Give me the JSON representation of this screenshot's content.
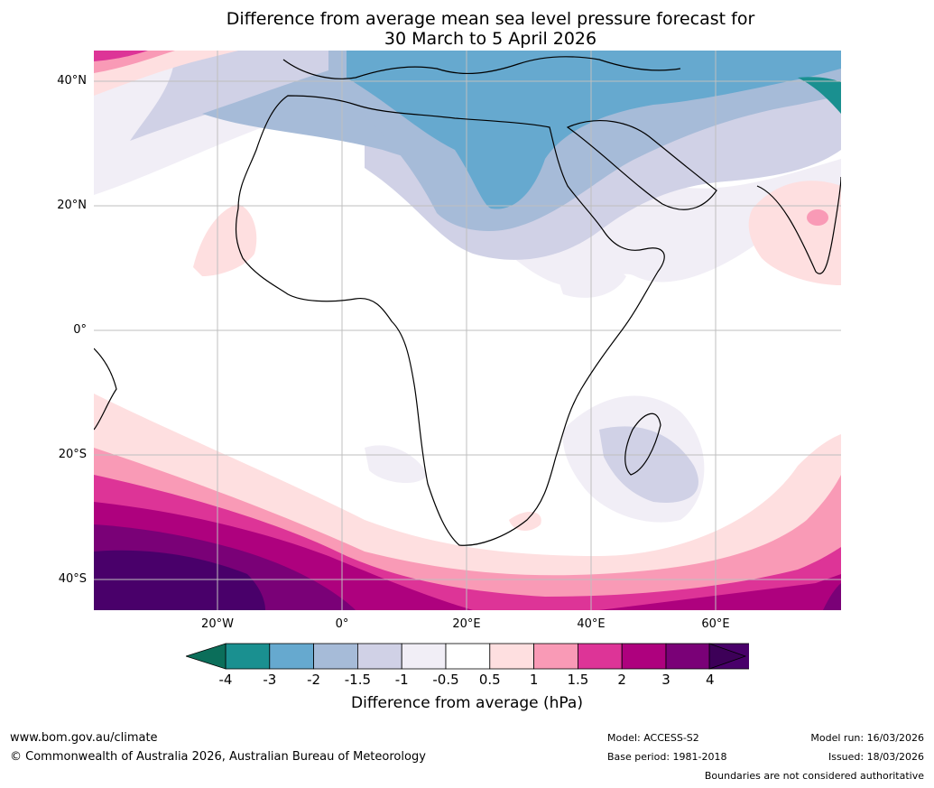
{
  "title_line1": "Difference from average mean sea level pressure forecast for",
  "title_line2": "30 March to 5 April 2026",
  "lat_labels": [
    "40°N",
    "20°N",
    "0°",
    "20°S",
    "40°S"
  ],
  "lon_labels": [
    "20°W",
    "0°",
    "20°E",
    "40°E",
    "60°E"
  ],
  "colorbar": {
    "title": "Difference from average (hPa)",
    "ticks": [
      "-4",
      "-3",
      "-2",
      "-1.5",
      "-1",
      "-0.5",
      "0.5",
      "1",
      "1.5",
      "2",
      "3",
      "4"
    ],
    "colors": [
      "#1a9090",
      "#66a9cf",
      "#a6bbd8",
      "#d0d1e6",
      "#f1eef6",
      "#ffffff",
      "#fedfe0",
      "#f99ab6",
      "#dd3497",
      "#ae017e",
      "#7a0177",
      "#49006a"
    ],
    "under_color": "#0b6e5a",
    "over_color": "#3d0058"
  },
  "footer": {
    "url": "www.bom.gov.au/climate",
    "copyright": "© Commonwealth of Australia 2026, Australian Bureau of Meteorology",
    "model": "Model: ACCESS-S2",
    "base_period": "Base period: 1981-2018",
    "model_run": "Model run: 16/03/2026",
    "issued": "Issued: 18/03/2026",
    "disclaimer": "Boundaries are not considered authoritative"
  }
}
